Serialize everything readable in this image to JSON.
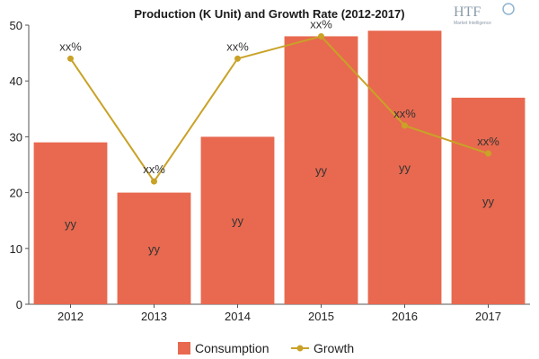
{
  "logo": {
    "brand": "HTF",
    "tagline": "Market Intelligence"
  },
  "chart_data": {
    "type": "bar",
    "title": "Production (K Unit) and Growth Rate (2012-2017)",
    "categories": [
      "2012",
      "2013",
      "2014",
      "2015",
      "2016",
      "2017"
    ],
    "ylim": [
      0,
      50
    ],
    "yticks": [
      0,
      10,
      20,
      30,
      40,
      50
    ],
    "series": [
      {
        "name": "Consumption",
        "kind": "bar",
        "color": "#e8694f",
        "values": [
          29,
          20,
          30,
          48,
          49,
          37
        ],
        "labels": [
          "yy",
          "yy",
          "yy",
          "yy",
          "yy",
          "yy"
        ]
      },
      {
        "name": "Growth",
        "kind": "line",
        "color": "#c9a227",
        "values": [
          44,
          22,
          44,
          48,
          32,
          27
        ],
        "labels": [
          "xx%",
          "xx%",
          "xx%",
          "xx%",
          "xx%",
          "xx%"
        ]
      }
    ],
    "grid": false,
    "legend": "bottom"
  }
}
